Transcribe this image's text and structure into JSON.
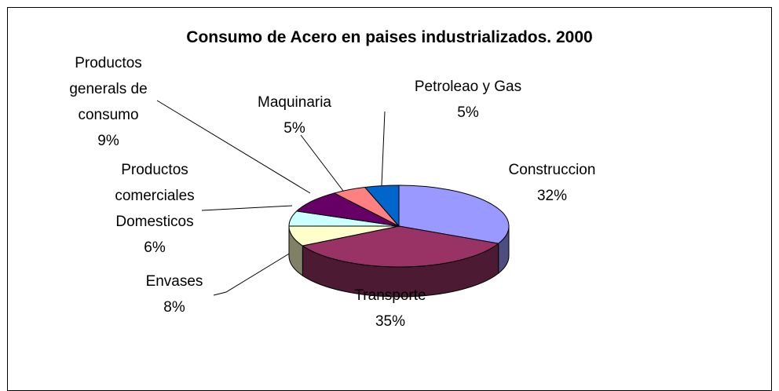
{
  "chart_data": {
    "type": "pie3d",
    "title": "Consumo de Acero en paises industrializados. 2000",
    "categories": [
      "Construccion",
      "Transporte",
      "Envases",
      "Productos comerciales Domesticos",
      "Productos generals de consumo",
      "Maquinaria",
      "Petroleao y Gas"
    ],
    "values": [
      32,
      35,
      8,
      6,
      9,
      5,
      5
    ],
    "value_labels": [
      "32%",
      "35%",
      "8%",
      "6%",
      "9%",
      "5%",
      "5%"
    ],
    "colors": [
      "#9999ff",
      "#993366",
      "#ffffcc",
      "#ccffff",
      "#660066",
      "#ff8080",
      "#0066cc"
    ]
  }
}
